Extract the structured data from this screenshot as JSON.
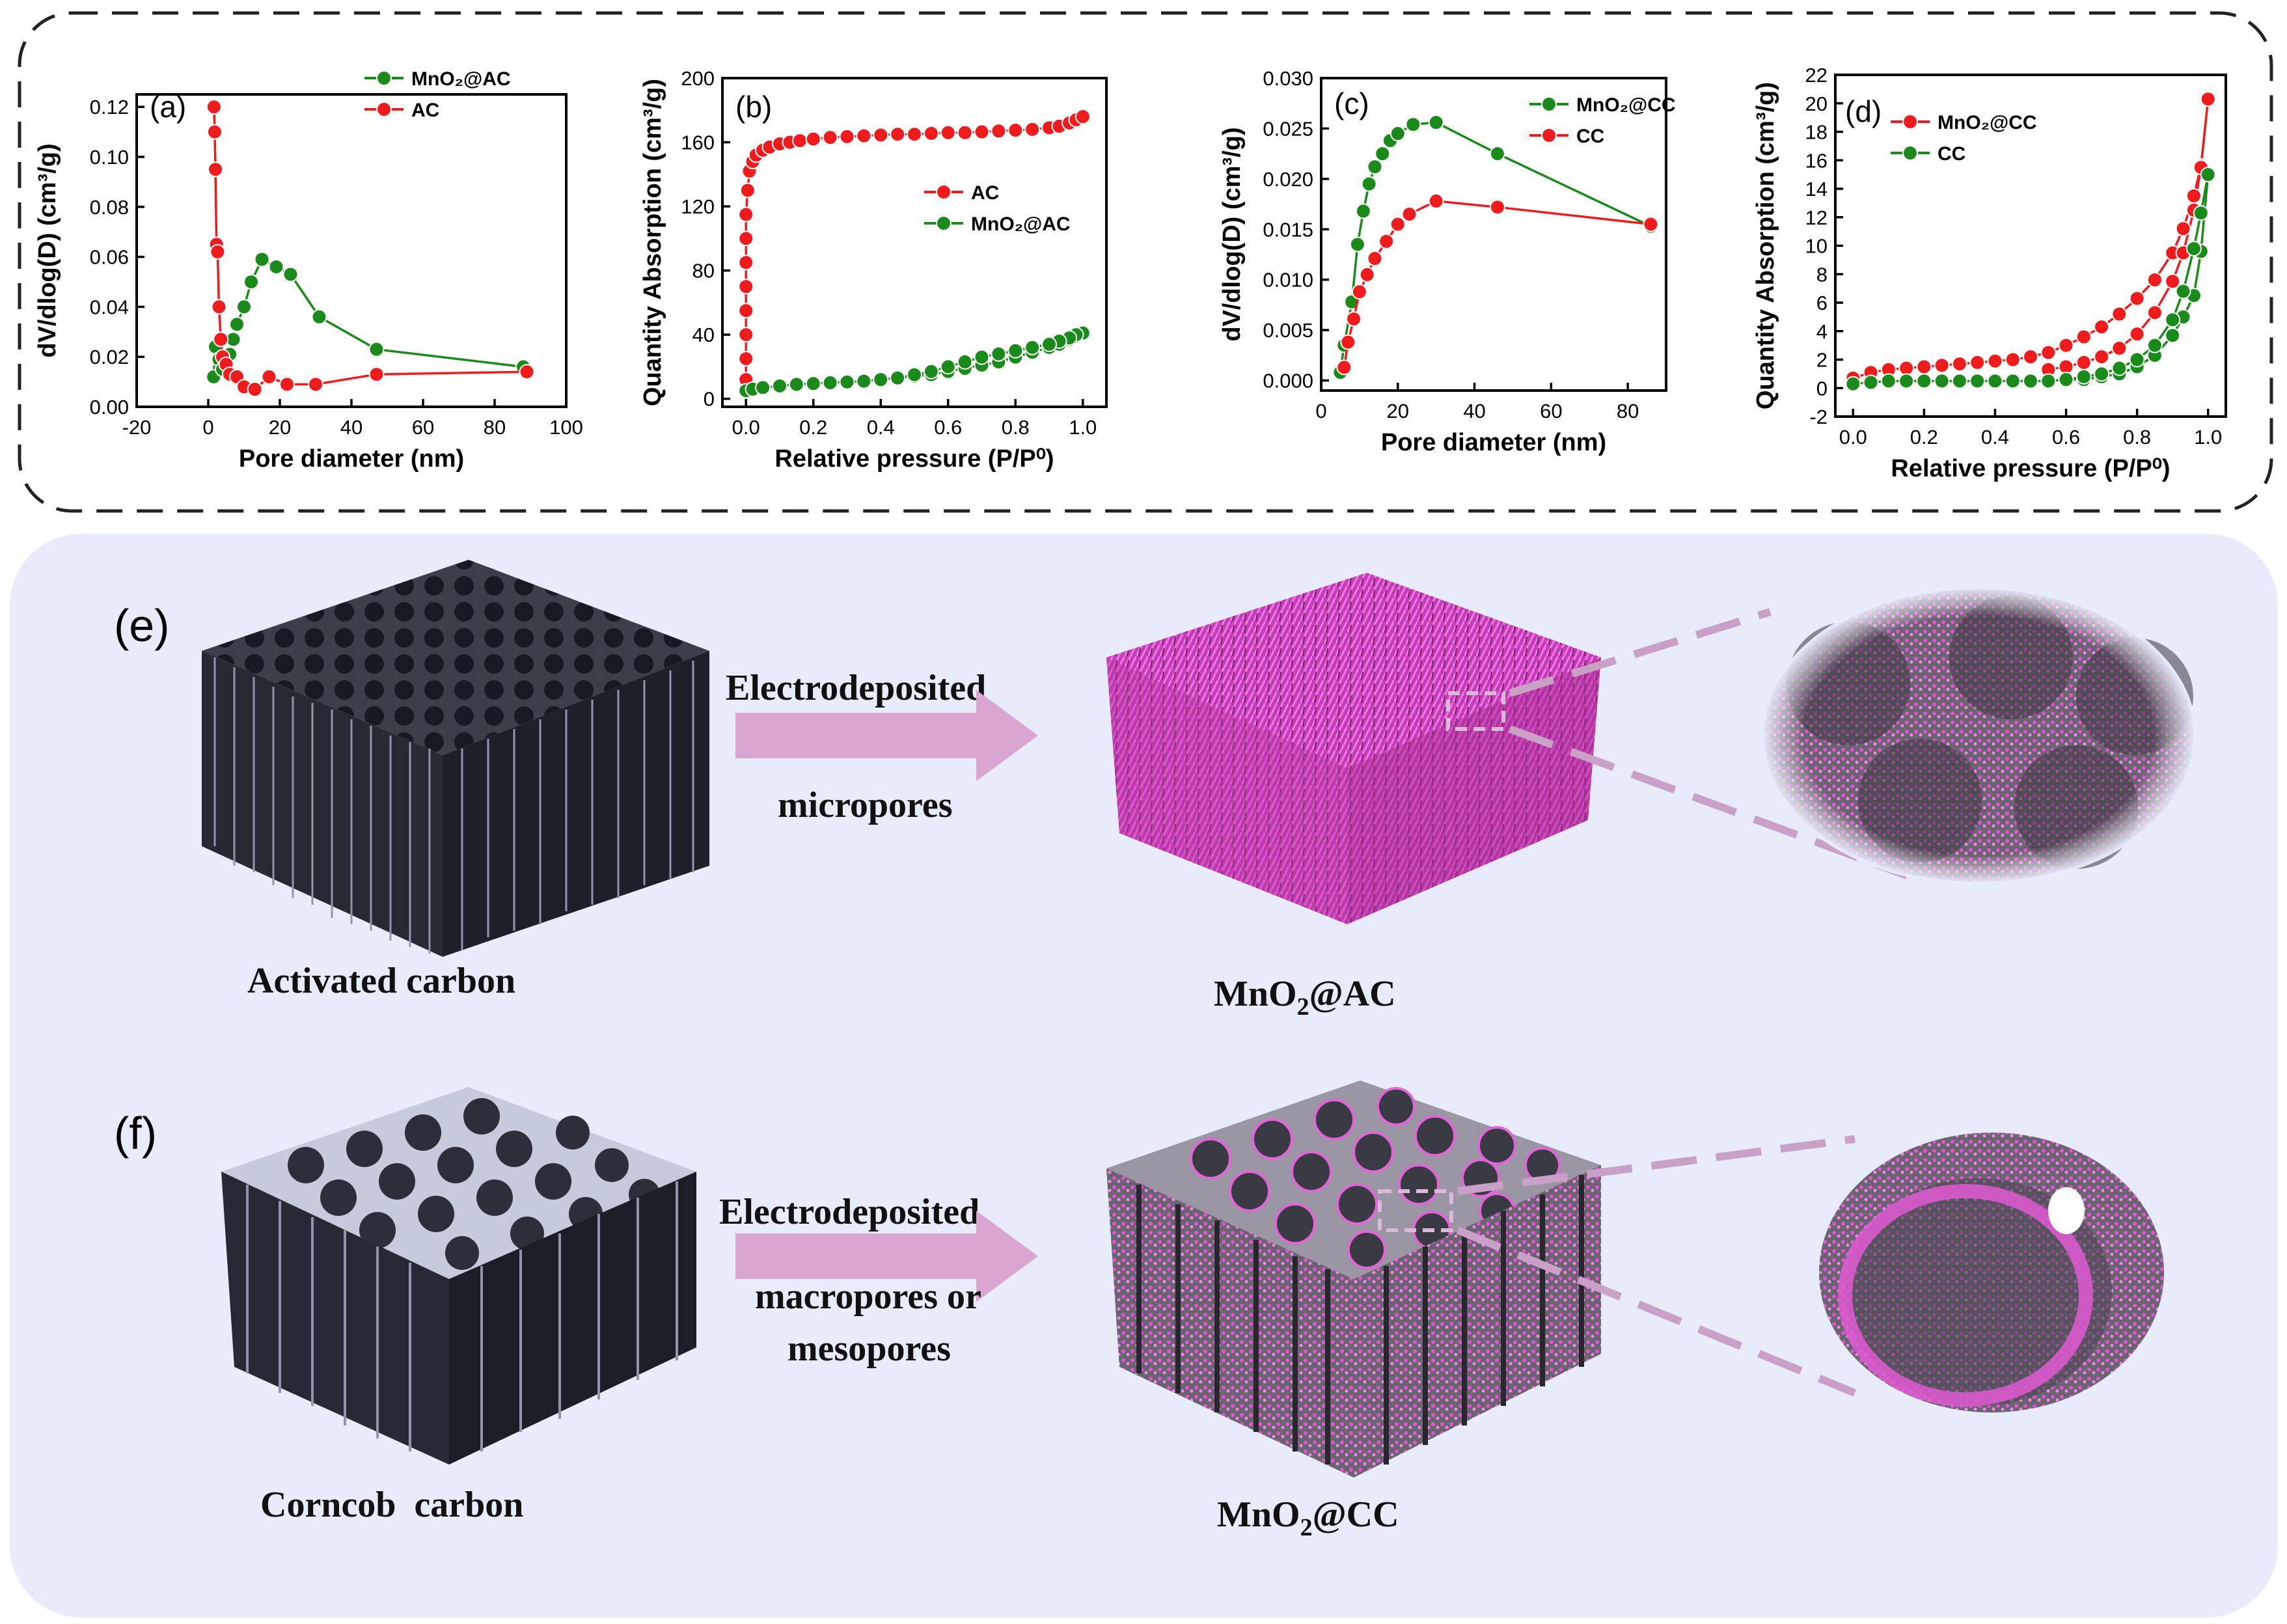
{
  "colors": {
    "red": "#ee1c1c",
    "green": "#1a8a1a",
    "bg_panel": "#e7ebfa",
    "arrow": "#d9a6cf",
    "pink": "#d646c8"
  },
  "chart_data": [
    {
      "id": "a",
      "type": "line",
      "panel_label": "(a)",
      "xlabel": "Pore diameter (nm)",
      "ylabel": "dV/dlog(D) (cm³/g)",
      "xlim": [
        -20,
        100
      ],
      "ylim": [
        0,
        0.125
      ],
      "xticks": [
        "-20",
        "0",
        "20",
        "40",
        "60",
        "80",
        "100"
      ],
      "yticks": [
        "0.00",
        "0.02",
        "0.04",
        "0.06",
        "0.08",
        "0.10",
        "0.12"
      ],
      "xtick_values": [
        -20,
        0,
        20,
        40,
        60,
        80,
        100
      ],
      "ytick_values": [
        0,
        0.02,
        0.04,
        0.06,
        0.08,
        0.1,
        0.12
      ],
      "legend": [
        "MnO₂@AC",
        "AC"
      ],
      "series": [
        {
          "name": "MnO₂@AC",
          "color": "green",
          "x": [
            1.5,
            2,
            3,
            4,
            5,
            6,
            7,
            8,
            10,
            12,
            15,
            19,
            23,
            31,
            47,
            88
          ],
          "y": [
            0.012,
            0.024,
            0.019,
            0.015,
            0.018,
            0.021,
            0.027,
            0.033,
            0.04,
            0.05,
            0.059,
            0.056,
            0.053,
            0.036,
            0.023,
            0.016
          ]
        },
        {
          "name": "AC",
          "color": "red",
          "x": [
            1.6,
            1.8,
            2.0,
            2.3,
            2.6,
            3,
            3.5,
            4,
            5,
            6,
            8,
            10,
            13,
            17,
            22,
            30,
            47,
            89
          ],
          "y": [
            0.12,
            0.11,
            0.095,
            0.065,
            0.062,
            0.04,
            0.027,
            0.02,
            0.017,
            0.013,
            0.012,
            0.008,
            0.007,
            0.012,
            0.009,
            0.009,
            0.013,
            0.014
          ]
        }
      ]
    },
    {
      "id": "b",
      "type": "line",
      "panel_label": "(b)",
      "xlabel": "Relative pressure (P/P⁰)",
      "ylabel": "Quantity Absorption (cm³/g)",
      "xlim": [
        -0.07,
        1.07
      ],
      "ylim": [
        -5,
        200
      ],
      "xticks": [
        "0.0",
        "0.2",
        "0.4",
        "0.6",
        "0.8",
        "1.0"
      ],
      "yticks": [
        "0",
        "40",
        "80",
        "120",
        "160",
        "200"
      ],
      "xtick_values": [
        0,
        0.2,
        0.4,
        0.6,
        0.8,
        1.0
      ],
      "ytick_values": [
        0,
        40,
        80,
        120,
        160,
        200
      ],
      "legend": [
        "AC",
        "MnO₂@AC"
      ],
      "series": [
        {
          "name": "AC",
          "color": "red",
          "x": [
            0.0,
            0.0,
            0.0,
            0.0,
            0.0,
            0.0,
            0.0,
            0.0,
            0.005,
            0.01,
            0.02,
            0.03,
            0.05,
            0.07,
            0.1,
            0.13,
            0.16,
            0.2,
            0.25,
            0.3,
            0.35,
            0.4,
            0.45,
            0.5,
            0.55,
            0.6,
            0.65,
            0.7,
            0.75,
            0.8,
            0.85,
            0.9,
            0.93,
            0.96,
            0.98,
            1.0
          ],
          "y": [
            12,
            25,
            40,
            55,
            70,
            85,
            100,
            115,
            130,
            142,
            148,
            152,
            155,
            157,
            159,
            160,
            161,
            162,
            163,
            163.5,
            164,
            164.5,
            165,
            165,
            165.5,
            166,
            166,
            166.5,
            167,
            167.5,
            168,
            169,
            170,
            172,
            174,
            176
          ]
        },
        {
          "name": "MnO₂@AC",
          "color": "green",
          "x": [
            0.0,
            0.02,
            0.05,
            0.1,
            0.15,
            0.2,
            0.25,
            0.3,
            0.35,
            0.4,
            0.45,
            0.5,
            0.55,
            0.6,
            0.65,
            0.7,
            0.75,
            0.8,
            0.85,
            0.9,
            0.93,
            0.96,
            0.98,
            1.0,
            0.98,
            0.96,
            0.93,
            0.9,
            0.85,
            0.8,
            0.75,
            0.7,
            0.65,
            0.6,
            0.55,
            0.5,
            0.45
          ],
          "y": [
            5,
            6,
            7,
            8,
            9,
            9.5,
            10,
            10.5,
            11,
            12,
            13,
            14,
            15,
            17,
            19,
            21,
            23,
            26,
            29,
            32,
            34,
            37,
            39,
            41,
            40,
            38,
            36,
            34,
            32,
            30,
            28,
            26,
            23,
            20,
            17,
            15,
            13
          ]
        }
      ]
    },
    {
      "id": "c",
      "type": "line",
      "panel_label": "(c)",
      "xlabel": "Pore diameter (nm)",
      "ylabel": "dV/dlog(D) (cm³/g)",
      "xlim": [
        0,
        90
      ],
      "ylim": [
        -0.001,
        0.03
      ],
      "xticks": [
        "0",
        "20",
        "40",
        "60",
        "80"
      ],
      "yticks": [
        "0.000",
        "0.005",
        "0.010",
        "0.015",
        "0.020",
        "0.025",
        "0.030"
      ],
      "xtick_values": [
        0,
        20,
        40,
        60,
        80
      ],
      "ytick_values": [
        0,
        0.005,
        0.01,
        0.015,
        0.02,
        0.025,
        0.03
      ],
      "legend": [
        "MnO₂@CC",
        "CC"
      ],
      "series": [
        {
          "name": "MnO₂@CC",
          "color": "green",
          "x": [
            5,
            6,
            8,
            9.5,
            11,
            12.5,
            14,
            16,
            18,
            20,
            24,
            30,
            46,
            86
          ],
          "y": [
            0.0008,
            0.0035,
            0.0078,
            0.0135,
            0.0168,
            0.0195,
            0.0212,
            0.0225,
            0.0238,
            0.0245,
            0.0254,
            0.0256,
            0.0225,
            0.0153
          ]
        },
        {
          "name": "CC",
          "color": "red",
          "x": [
            6,
            7,
            8.5,
            10,
            12,
            14,
            17,
            20,
            23,
            30,
            46,
            86
          ],
          "y": [
            0.0013,
            0.0038,
            0.0061,
            0.0088,
            0.0105,
            0.0121,
            0.0138,
            0.0155,
            0.0165,
            0.0178,
            0.0172,
            0.0155
          ]
        }
      ]
    },
    {
      "id": "d",
      "type": "line",
      "panel_label": "(d)",
      "xlabel": "Relative pressure (P/P⁰)",
      "ylabel": "Quantity Absorption (cm³/g)",
      "xlim": [
        -0.05,
        1.05
      ],
      "ylim": [
        -2,
        22
      ],
      "xticks": [
        "0.0",
        "0.2",
        "0.4",
        "0.6",
        "0.8",
        "1.0"
      ],
      "yticks": [
        "-2",
        "0",
        "2",
        "4",
        "6",
        "8",
        "10",
        "12",
        "14",
        "16",
        "18",
        "20",
        "22"
      ],
      "xtick_values": [
        0,
        0.2,
        0.4,
        0.6,
        0.8,
        1.0
      ],
      "ytick_values": [
        -2,
        0,
        2,
        4,
        6,
        8,
        10,
        12,
        14,
        16,
        18,
        20,
        22
      ],
      "legend": [
        "MnO₂@CC",
        "CC"
      ],
      "series": [
        {
          "name": "MnO₂@CC",
          "color": "red",
          "x": [
            0.0,
            0.05,
            0.1,
            0.15,
            0.2,
            0.25,
            0.3,
            0.35,
            0.4,
            0.45,
            0.5,
            0.55,
            0.6,
            0.65,
            0.7,
            0.75,
            0.8,
            0.85,
            0.9,
            0.93,
            0.96,
            0.98,
            1.0,
            0.98,
            0.96,
            0.93,
            0.9,
            0.85,
            0.8,
            0.75,
            0.7,
            0.65,
            0.6,
            0.55
          ],
          "y": [
            0.7,
            1.1,
            1.3,
            1.4,
            1.5,
            1.6,
            1.7,
            1.8,
            1.9,
            2.0,
            2.2,
            2.5,
            3.0,
            3.6,
            4.3,
            5.2,
            6.3,
            7.6,
            9.5,
            11.2,
            13.5,
            15.6,
            20.3,
            15.5,
            12.5,
            9.5,
            7.5,
            5.3,
            3.8,
            2.8,
            2.2,
            1.8,
            1.5,
            1.3
          ]
        },
        {
          "name": "CC",
          "color": "green",
          "x": [
            0.0,
            0.05,
            0.1,
            0.15,
            0.2,
            0.25,
            0.3,
            0.35,
            0.4,
            0.45,
            0.5,
            0.55,
            0.6,
            0.65,
            0.7,
            0.75,
            0.8,
            0.85,
            0.9,
            0.93,
            0.96,
            0.98,
            1.0,
            0.98,
            0.96,
            0.93,
            0.9,
            0.85,
            0.8,
            0.75,
            0.7,
            0.65,
            0.6
          ],
          "y": [
            0.3,
            0.4,
            0.5,
            0.5,
            0.5,
            0.5,
            0.5,
            0.5,
            0.5,
            0.5,
            0.5,
            0.5,
            0.6,
            0.6,
            0.8,
            1.0,
            1.5,
            2.3,
            3.7,
            5.0,
            6.5,
            9.6,
            15.0,
            12.3,
            9.8,
            6.8,
            4.8,
            3.0,
            2.0,
            1.4,
            1.0,
            0.8,
            0.6
          ]
        }
      ]
    }
  ],
  "schematic": {
    "row_e": {
      "label": "(e)",
      "left_caption": "Activated carbon",
      "arrow_top": "Electrodeposited",
      "arrow_bottom": "micropores",
      "right_caption_main": "MnO",
      "right_caption_sub": "2",
      "right_caption_tail": "@AC"
    },
    "row_f": {
      "label": "(f)",
      "left_caption": "Corncob  carbon",
      "arrow_top": "Electrodeposited",
      "arrow_bottom_1": "macropores or",
      "arrow_bottom_2": "mesopores",
      "right_caption_main": "MnO",
      "right_caption_sub": "2",
      "right_caption_tail": "@CC"
    }
  }
}
